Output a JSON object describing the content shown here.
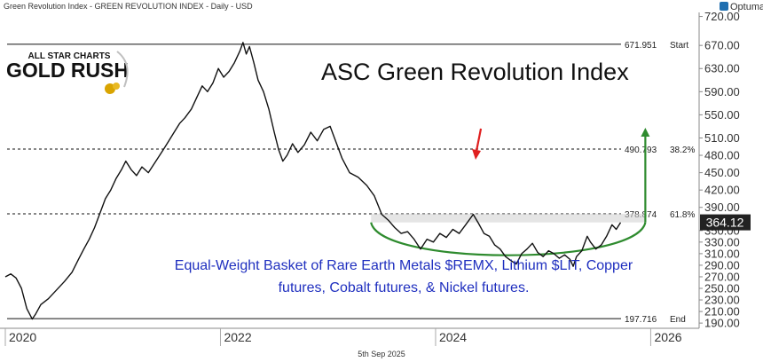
{
  "header": {
    "caption": "Green Revolution Index - GREEN REVOLUTION INDEX - Daily - USD",
    "brand": "Optuma"
  },
  "logo": {
    "line1": "ALL STAR CHARTS",
    "line2": "GOLD RUSH"
  },
  "footer": {
    "date": "5th Sep 2025"
  },
  "chart_data": {
    "type": "line",
    "title": "ASC Green Revolution Index",
    "annotation": "Equal-Weight Basket of Rare Earth Metals $REMX, Lithium $LIT, Copper futures, Cobalt futures, & Nickel futures.",
    "annotation_lines": [
      "Equal-Weight Basket of Rare Earth Metals $REMX, Lithium $LIT, Copper",
      "futures, Cobalt futures, & Nickel futures."
    ],
    "xlim": [
      2020.0,
      2026.45
    ],
    "ylim": [
      181,
      727
    ],
    "x_ticks": [
      2020,
      2022,
      2024,
      2026
    ],
    "x_tick_labels": [
      "2020",
      "2022",
      "2024",
      "2026"
    ],
    "y_ticks": [
      190,
      210,
      230,
      250,
      270,
      290,
      310,
      330,
      350,
      390,
      420,
      450,
      480,
      510,
      550,
      590,
      630,
      670,
      720
    ],
    "y_tick_labels": [
      "190.00",
      "210.00",
      "230.00",
      "250.00",
      "270.00",
      "290.00",
      "310.00",
      "330.00",
      "350.00",
      "390.00",
      "420.00",
      "450.00",
      "480.00",
      "510.00",
      "550.00",
      "590.00",
      "630.00",
      "670.00",
      "720.00"
    ],
    "last_value": 364.12,
    "last_value_label": "364.12",
    "levels": [
      {
        "value": 671.951,
        "value_label": "671.951",
        "label": "Start",
        "style": "solid"
      },
      {
        "value": 490.793,
        "value_label": "490.793",
        "label": "38.2%",
        "style": "dashed"
      },
      {
        "value": 378.874,
        "value_label": "378.874",
        "label": "61.8%",
        "style": "dashed"
      },
      {
        "value": 197.716,
        "value_label": "197.716",
        "label": "End",
        "style": "solid"
      }
    ],
    "resistance_zone": {
      "x_start": 2023.4,
      "x_end": 2025.95,
      "y_low": 364,
      "y_high": 379
    },
    "down_arrow_x": 2024.38,
    "series": [
      {
        "values": [
          [
            2020.0,
            270
          ],
          [
            2020.05,
            275
          ],
          [
            2020.1,
            268
          ],
          [
            2020.15,
            250
          ],
          [
            2020.2,
            215
          ],
          [
            2020.25,
            197
          ],
          [
            2020.28,
            205
          ],
          [
            2020.33,
            222
          ],
          [
            2020.4,
            232
          ],
          [
            2020.48,
            248
          ],
          [
            2020.55,
            262
          ],
          [
            2020.62,
            278
          ],
          [
            2020.68,
            300
          ],
          [
            2020.73,
            318
          ],
          [
            2020.78,
            335
          ],
          [
            2020.83,
            355
          ],
          [
            2020.88,
            380
          ],
          [
            2020.93,
            405
          ],
          [
            2020.98,
            420
          ],
          [
            2021.03,
            440
          ],
          [
            2021.08,
            455
          ],
          [
            2021.12,
            470
          ],
          [
            2021.17,
            455
          ],
          [
            2021.22,
            445
          ],
          [
            2021.27,
            460
          ],
          [
            2021.33,
            450
          ],
          [
            2021.4,
            470
          ],
          [
            2021.47,
            490
          ],
          [
            2021.52,
            505
          ],
          [
            2021.57,
            520
          ],
          [
            2021.62,
            535
          ],
          [
            2021.67,
            545
          ],
          [
            2021.73,
            560
          ],
          [
            2021.78,
            580
          ],
          [
            2021.83,
            600
          ],
          [
            2021.88,
            590
          ],
          [
            2021.93,
            605
          ],
          [
            2021.98,
            630
          ],
          [
            2022.03,
            615
          ],
          [
            2022.08,
            625
          ],
          [
            2022.13,
            640
          ],
          [
            2022.18,
            660
          ],
          [
            2022.21,
            675
          ],
          [
            2022.24,
            655
          ],
          [
            2022.27,
            668
          ],
          [
            2022.31,
            640
          ],
          [
            2022.35,
            610
          ],
          [
            2022.4,
            590
          ],
          [
            2022.45,
            560
          ],
          [
            2022.5,
            520
          ],
          [
            2022.54,
            490
          ],
          [
            2022.58,
            470
          ],
          [
            2022.62,
            480
          ],
          [
            2022.67,
            500
          ],
          [
            2022.72,
            485
          ],
          [
            2022.78,
            498
          ],
          [
            2022.84,
            520
          ],
          [
            2022.9,
            505
          ],
          [
            2022.96,
            525
          ],
          [
            2023.02,
            530
          ],
          [
            2023.07,
            505
          ],
          [
            2023.13,
            475
          ],
          [
            2023.2,
            450
          ],
          [
            2023.28,
            442
          ],
          [
            2023.36,
            428
          ],
          [
            2023.43,
            410
          ],
          [
            2023.5,
            378
          ],
          [
            2023.56,
            368
          ],
          [
            2023.62,
            355
          ],
          [
            2023.68,
            345
          ],
          [
            2023.74,
            348
          ],
          [
            2023.8,
            335
          ],
          [
            2023.86,
            318
          ],
          [
            2023.92,
            335
          ],
          [
            2023.98,
            330
          ],
          [
            2024.04,
            345
          ],
          [
            2024.1,
            338
          ],
          [
            2024.16,
            352
          ],
          [
            2024.22,
            345
          ],
          [
            2024.28,
            360
          ],
          [
            2024.35,
            378
          ],
          [
            2024.4,
            362
          ],
          [
            2024.45,
            345
          ],
          [
            2024.5,
            340
          ],
          [
            2024.55,
            325
          ],
          [
            2024.6,
            318
          ],
          [
            2024.65,
            305
          ],
          [
            2024.7,
            298
          ],
          [
            2024.75,
            292
          ],
          [
            2024.8,
            310
          ],
          [
            2024.85,
            318
          ],
          [
            2024.9,
            328
          ],
          [
            2024.95,
            312
          ],
          [
            2025.0,
            305
          ],
          [
            2025.05,
            315
          ],
          [
            2025.1,
            310
          ],
          [
            2025.15,
            302
          ],
          [
            2025.2,
            308
          ],
          [
            2025.25,
            300
          ],
          [
            2025.28,
            288
          ],
          [
            2025.31,
            305
          ],
          [
            2025.36,
            315
          ],
          [
            2025.41,
            340
          ],
          [
            2025.44,
            330
          ],
          [
            2025.49,
            318
          ],
          [
            2025.54,
            325
          ],
          [
            2025.59,
            340
          ],
          [
            2025.64,
            360
          ],
          [
            2025.68,
            352
          ],
          [
            2025.72,
            364
          ]
        ]
      }
    ]
  }
}
